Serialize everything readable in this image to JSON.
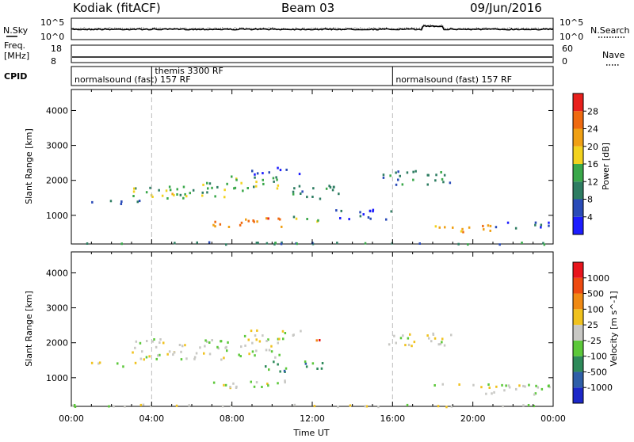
{
  "header": {
    "station": "Kodiak (fitACF)",
    "beam": "Beam 03",
    "date": "09/Jun/2016"
  },
  "status_panels": {
    "nsky": {
      "label": "N.Sky",
      "ticks": [
        "10^5",
        "10^0"
      ]
    },
    "nsearch": {
      "label": "N.Search",
      "ticks": [
        "10^5",
        "10^0"
      ]
    },
    "freq": {
      "label": "Freq.",
      "unit": "[MHz]",
      "ticks": [
        "18",
        "8"
      ]
    },
    "nave": {
      "label": "Nave",
      "ticks": [
        "60",
        "0"
      ]
    },
    "cpid": {
      "label": "CPID",
      "segments": [
        {
          "start": 0,
          "end": 4,
          "text": "normalsound (fast) 157 RF"
        },
        {
          "start": 4,
          "end": 16,
          "text": "themis 3300 RF"
        },
        {
          "start": 16,
          "end": 24,
          "text": "normalsound (fast) 157 RF"
        }
      ]
    }
  },
  "time_axis": {
    "xlabel": "Time UT",
    "ticks": [
      "00:00",
      "04:00",
      "08:00",
      "12:00",
      "16:00",
      "20:00",
      "00:00"
    ]
  },
  "power_colorbar": {
    "label": "Power [dB]",
    "ticks": [
      "4",
      "8",
      "12",
      "16",
      "20",
      "24",
      "28"
    ],
    "colors": [
      "#1c1cff",
      "#2a4bb8",
      "#2e7d62",
      "#3aa84a",
      "#f2d21e",
      "#f0a014",
      "#ef6a10",
      "#e8201c"
    ]
  },
  "velocity_colorbar": {
    "label": "Velocity [m s^-1]",
    "ticks": [
      "1000",
      "500",
      "100",
      "25",
      "-25",
      "-100",
      "-500",
      "-1000"
    ],
    "colors": [
      "#1c28c8",
      "#2f5fa8",
      "#2e8a5a",
      "#5cc83a",
      "#c8c8c4",
      "#f0c21e",
      "#f08a14",
      "#ee4a10",
      "#e8141c"
    ]
  },
  "chart_data": [
    {
      "type": "heatmap",
      "name": "power",
      "xlabel": "",
      "ylabel": "Slant Range [km]",
      "xlim": [
        0,
        24
      ],
      "ylim": [
        180,
        4600
      ],
      "yticks": [
        1000,
        2000,
        3000,
        4000
      ],
      "grid": false,
      "bands": [
        {
          "t0": 0.8,
          "t1": 3.4,
          "r0": 1350,
          "r1": 1500,
          "level": 1
        },
        {
          "t0": 3.0,
          "t1": 8.5,
          "r0": 1550,
          "r1": 1850,
          "level": 3
        },
        {
          "t0": 4.5,
          "t1": 6.5,
          "r0": 1500,
          "r1": 1700,
          "level": 4
        },
        {
          "t0": 6.5,
          "t1": 10.5,
          "r0": 1800,
          "r1": 2150,
          "level": 3
        },
        {
          "t0": 8.5,
          "t1": 11.5,
          "r0": 2200,
          "r1": 2400,
          "level": 1
        },
        {
          "t0": 11.0,
          "t1": 13.5,
          "r0": 1500,
          "r1": 1900,
          "level": 2
        },
        {
          "t0": 7.0,
          "t1": 11.0,
          "r0": 700,
          "r1": 950,
          "level": 6
        },
        {
          "t0": 11.0,
          "t1": 13.0,
          "r0": 850,
          "r1": 1000,
          "level": 3
        },
        {
          "t0": 13.0,
          "t1": 16.0,
          "r0": 900,
          "r1": 1200,
          "level": 1
        },
        {
          "t0": 15.5,
          "t1": 19.0,
          "r0": 1900,
          "r1": 2300,
          "level": 2
        },
        {
          "t0": 18.0,
          "t1": 21.0,
          "r0": 550,
          "r1": 800,
          "level": 5
        },
        {
          "t0": 21.0,
          "t1": 23.8,
          "r0": 650,
          "r1": 850,
          "level": 1
        },
        {
          "t0": 0.0,
          "t1": 24.0,
          "r0": 190,
          "r1": 260,
          "level": 2
        }
      ]
    },
    {
      "type": "heatmap",
      "name": "velocity",
      "xlabel": "Time UT",
      "ylabel": "Slant Range [km]",
      "xlim": [
        0,
        24
      ],
      "ylim": [
        180,
        4600
      ],
      "yticks": [
        1000,
        2000,
        3000,
        4000
      ],
      "grid": false,
      "bands": [
        {
          "t0": 0.8,
          "t1": 3.4,
          "r0": 1350,
          "r1": 1500,
          "level": 4
        },
        {
          "t0": 3.0,
          "t1": 10.5,
          "r0": 1550,
          "r1": 2150,
          "level": 4
        },
        {
          "t0": 8.5,
          "t1": 11.5,
          "r0": 2200,
          "r1": 2400,
          "level": 4
        },
        {
          "t0": 7.0,
          "t1": 11.0,
          "r0": 700,
          "r1": 950,
          "level": 4
        },
        {
          "t0": 9.5,
          "t1": 12.5,
          "r0": 1200,
          "r1": 1500,
          "level": 2
        },
        {
          "t0": 12.0,
          "t1": 12.5,
          "r0": 1950,
          "r1": 2200,
          "level": 7
        },
        {
          "t0": 15.5,
          "t1": 19.0,
          "r0": 1900,
          "r1": 2300,
          "level": 4
        },
        {
          "t0": 18.0,
          "t1": 23.8,
          "r0": 550,
          "r1": 850,
          "level": 4
        },
        {
          "t0": 0.0,
          "t1": 24.0,
          "r0": 190,
          "r1": 260,
          "level": 4
        }
      ]
    }
  ]
}
